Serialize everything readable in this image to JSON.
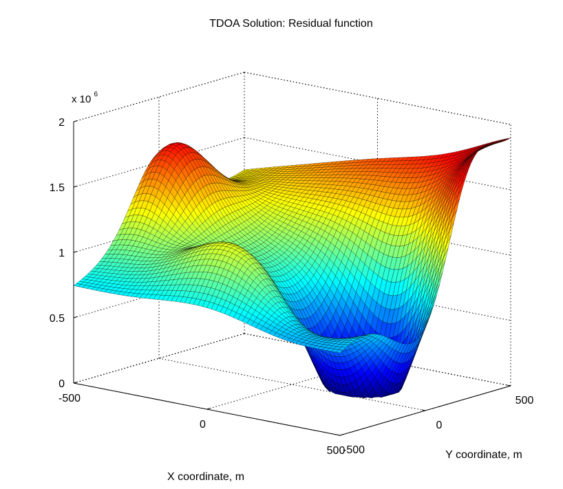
{
  "chart_data": {
    "type": "surface",
    "title": "TDOA Solution: Residual function",
    "xlabel": "X coordinate, m",
    "ylabel": "Y coordinate, m",
    "zlabel": "",
    "xlim": [
      -500,
      500
    ],
    "ylim": [
      -500,
      500
    ],
    "zlim": [
      0,
      2000000
    ],
    "z_exponent_label": "x 10",
    "z_exponent_power": "6",
    "x_ticks": [
      {
        "value": -500,
        "label": "-500"
      },
      {
        "value": 0,
        "label": "0"
      },
      {
        "value": 500,
        "label": "500"
      }
    ],
    "y_ticks": [
      {
        "value": -500,
        "label": "-500"
      },
      {
        "value": 0,
        "label": "0"
      },
      {
        "value": 500,
        "label": "500"
      }
    ],
    "z_ticks": [
      {
        "value": 0,
        "label": "0"
      },
      {
        "value": 500000,
        "label": "0.5"
      },
      {
        "value": 1000000,
        "label": "1"
      },
      {
        "value": 1500000,
        "label": "1.5"
      },
      {
        "value": 2000000,
        "label": "2"
      }
    ],
    "colormap": "jet",
    "grid": true,
    "surface_corners": [
      {
        "x": -500,
        "y": -500,
        "z": 740000
      },
      {
        "x": 500,
        "y": -500,
        "z": 650000
      },
      {
        "x": -500,
        "y": 500,
        "z": 1250000
      },
      {
        "x": 500,
        "y": 500,
        "z": 1850000
      }
    ],
    "minimum": {
      "x": 300,
      "y": 0,
      "z": 100000
    },
    "peaks": [
      {
        "x": 500,
        "y": 250,
        "z": 2000000
      },
      {
        "x": -450,
        "y": 0,
        "z": 1600000
      },
      {
        "x": 0,
        "y": -320,
        "z": 1030000
      }
    ]
  }
}
